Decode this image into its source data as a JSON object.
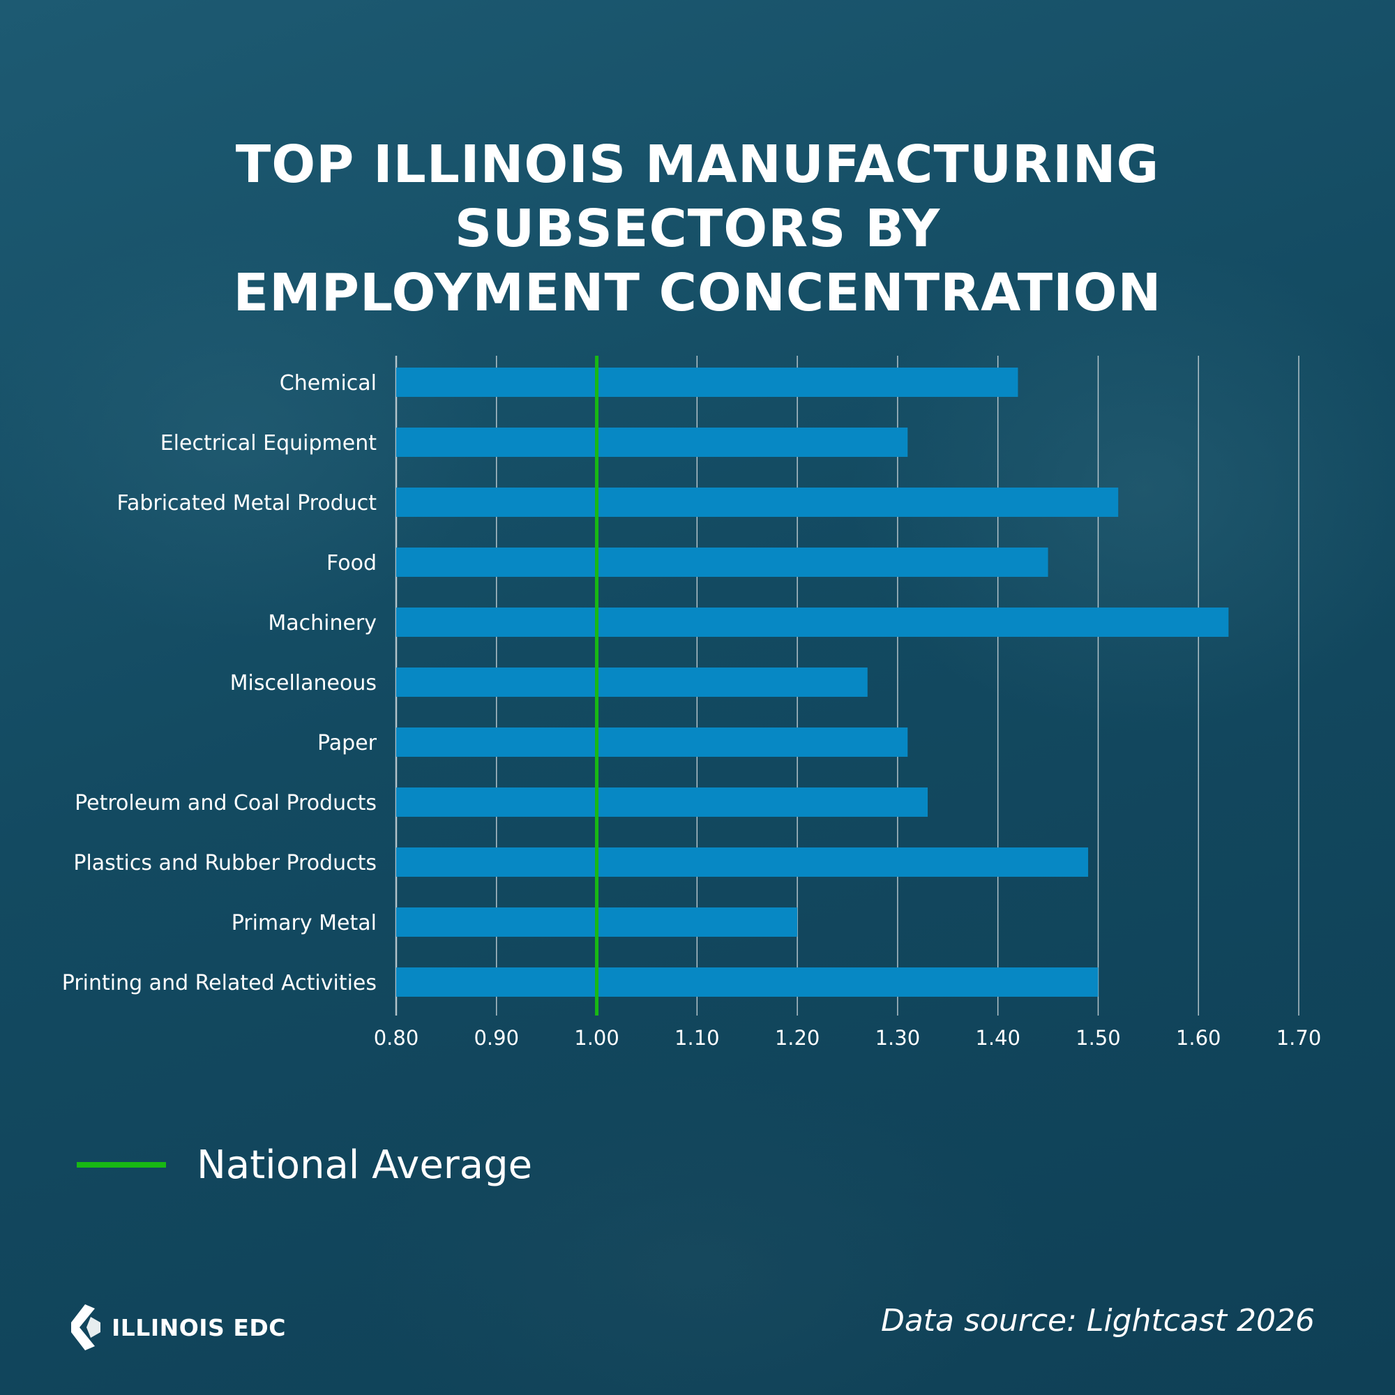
{
  "title_lines": [
    "TOP ILLINOIS MANUFACTURING SUBSECTORS BY",
    "EMPLOYMENT CONCENTRATION"
  ],
  "legend": {
    "label": "National Average",
    "color": "#18b814"
  },
  "footer": {
    "logo_text": "ILLINOIS EDC",
    "source": "Data source: Lightcast 2026"
  },
  "colors": {
    "bar": "#0788c4",
    "grid": "#cfd8dc",
    "reference_line": "#18b814"
  },
  "chart_data": {
    "type": "bar",
    "orientation": "horizontal",
    "title": "TOP ILLINOIS MANUFACTURING SUBSECTORS BY EMPLOYMENT CONCENTRATION",
    "categories": [
      "Chemical",
      "Electrical Equipment",
      "Fabricated Metal Product",
      "Food",
      "Machinery",
      "Miscellaneous",
      "Paper",
      "Petroleum and Coal Products",
      "Plastics and Rubber Products",
      "Primary Metal",
      "Printing and Related Activities"
    ],
    "values": [
      1.42,
      1.31,
      1.52,
      1.45,
      1.63,
      1.27,
      1.31,
      1.33,
      1.49,
      1.2,
      1.5
    ],
    "xlim": [
      0.8,
      1.7
    ],
    "xticks": [
      "0.80",
      "0.90",
      "1.00",
      "1.10",
      "1.20",
      "1.30",
      "1.40",
      "1.50",
      "1.60",
      "1.70"
    ],
    "xlabel": "",
    "ylabel": "",
    "grid": "vertical",
    "reference_line": {
      "value": 1.0,
      "label": "National Average"
    },
    "legend_position": "bottom-left"
  }
}
